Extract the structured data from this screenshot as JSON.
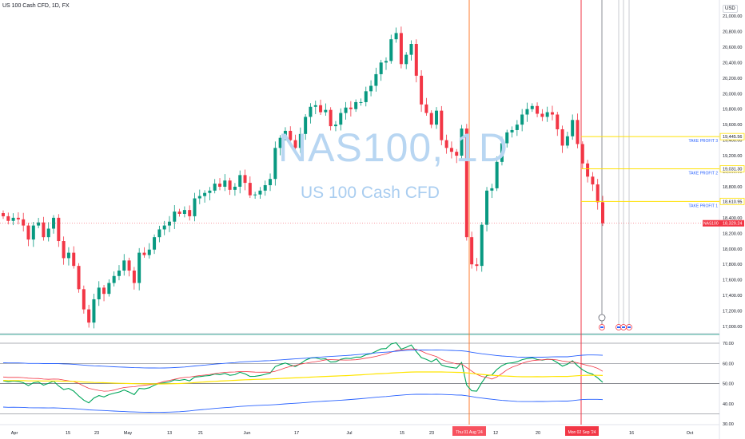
{
  "header": {
    "title": "US 100 Cash CFD, 1D, FX",
    "currency": "USD"
  },
  "watermark": {
    "symbol": "NAS100, 1D",
    "description": "US 100 Cash CFD"
  },
  "price_axis": {
    "ticks": [
      "21,000.00",
      "20,800.00",
      "20,600.00",
      "20,400.00",
      "20,200.00",
      "20,000.00",
      "19,800.00",
      "19,600.00",
      "19,400.00",
      "19,200.00",
      "19,000.00",
      "18,800.00",
      "18,600.00",
      "18,400.00",
      "18,200.00",
      "18,000.00",
      "17,800.00",
      "17,600.00",
      "17,400.00",
      "17,200.00",
      "17,000.00"
    ],
    "current": {
      "symbol": "NAS100",
      "price": "18,329.24",
      "value": 18329.24
    }
  },
  "take_profits": [
    {
      "label": "TAKE PROFIT 3",
      "price": "19,445.56",
      "value": 19445.56
    },
    {
      "label": "TAKE PROFIT 2",
      "price": "19,031.30",
      "value": 19031.3
    },
    {
      "label": "TAKE PROFIT 1",
      "price": "18,610.95",
      "value": 18610.95
    }
  ],
  "indicator_axis": {
    "ticks": [
      "70.00",
      "60.00",
      "50.00",
      "40.00",
      "30.00"
    ],
    "levels": [
      70,
      50,
      35
    ]
  },
  "time_axis": {
    "labels": [
      "Apr",
      "15",
      "23",
      "May",
      "13",
      "21",
      "Jun",
      "17",
      "Jul",
      "15",
      "23",
      "12",
      "20",
      "16",
      "Oct"
    ],
    "markers": [
      {
        "label": "Thu 01 Aug '24",
        "color": "#f7525f"
      },
      {
        "label": "Mon 02 Sep '24",
        "color": "#f23645"
      }
    ]
  },
  "colors": {
    "up": "#089981",
    "down": "#f23645",
    "tp": "#ffe100",
    "tp_text": "#2962ff",
    "rsi": "#00a65a",
    "ma": "#f23645",
    "ma2": "#ffe500",
    "bb": "#2962ff"
  },
  "chart_data": {
    "type": "candlestick",
    "ylim": [
      16900,
      21100
    ],
    "indicator_ylim": [
      30,
      75
    ],
    "closes": [
      18420,
      18360,
      18400,
      18380,
      18300,
      18120,
      18300,
      18340,
      18150,
      18260,
      18400,
      18100,
      17880,
      17950,
      17780,
      17480,
      17220,
      17050,
      17350,
      17500,
      17420,
      17560,
      17650,
      17720,
      17850,
      17720,
      17560,
      17950,
      17920,
      17990,
      18150,
      18250,
      18300,
      18350,
      18480,
      18450,
      18500,
      18420,
      18650,
      18680,
      18720,
      18750,
      18840,
      18800,
      18880,
      18760,
      18800,
      18950,
      18850,
      18690,
      18700,
      18750,
      18820,
      18900,
      19300,
      19430,
      19520,
      19400,
      19300,
      19480,
      19700,
      19830,
      19850,
      19760,
      19790,
      19580,
      19600,
      19750,
      19820,
      19800,
      19890,
      19890,
      20030,
      20100,
      20250,
      20400,
      20420,
      20700,
      20780,
      20380,
      20500,
      20640,
      20230,
      19860,
      19750,
      19600,
      19780,
      19400,
      19300,
      19250,
      19200,
      19550,
      18150,
      17800,
      17780,
      18310,
      18750,
      18780,
      19120,
      19360,
      19500,
      19530,
      19600,
      19730,
      19800,
      19840,
      19740,
      19700,
      19760,
      19730,
      19540,
      19330,
      19450,
      19660,
      19350,
      19100,
      18930,
      18830,
      18600,
      18329
    ],
    "indicator": {
      "rsi_range": [
        40,
        72
      ],
      "ma_range": [
        44,
        70
      ],
      "ma2_range": [
        48,
        58
      ]
    }
  }
}
